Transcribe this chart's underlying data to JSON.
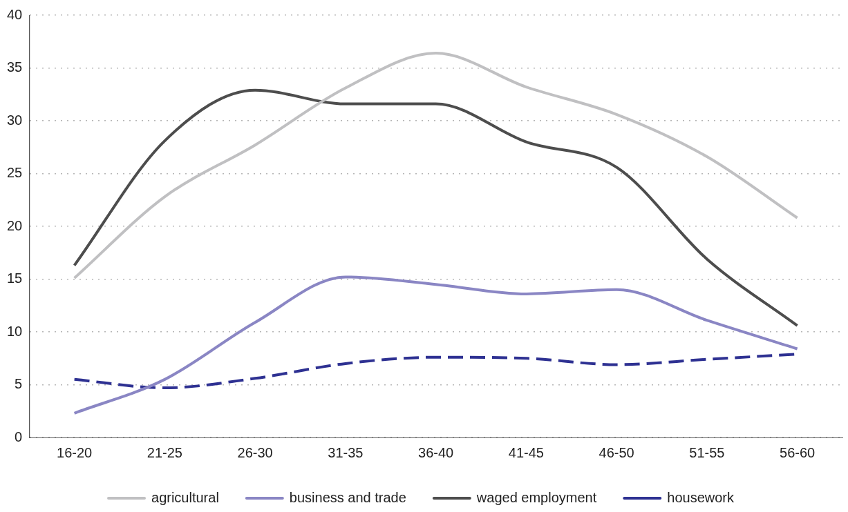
{
  "chart_data": {
    "type": "line",
    "categories": [
      "16-20",
      "21-25",
      "26-30",
      "31-35",
      "36-40",
      "41-45",
      "46-50",
      "51-55",
      "56-60"
    ],
    "series": [
      {
        "name": "agricultural",
        "color": "#c0c0c2",
        "values": [
          15.1,
          22.8,
          27.7,
          33.1,
          36.4,
          33.2,
          30.6,
          26.6,
          20.8
        ]
      },
      {
        "name": "business and trade",
        "color": "#8a86c4",
        "values": [
          2.3,
          5.5,
          10.9,
          15.2,
          14.5,
          13.6,
          14.0,
          11.1,
          8.4
        ]
      },
      {
        "name": "waged employment",
        "color": "#4d4d4d",
        "values": [
          16.3,
          28.1,
          32.9,
          31.6,
          31.6,
          28.0,
          25.6,
          16.9,
          10.6
        ]
      },
      {
        "name": "housework",
        "color": "#2e3192",
        "line_style": "dashed",
        "values": [
          5.5,
          4.7,
          5.6,
          7.0,
          7.6,
          7.5,
          6.9,
          7.4,
          7.9
        ]
      }
    ],
    "ylim": [
      0,
      40
    ],
    "yticks": [
      0,
      5,
      10,
      15,
      20,
      25,
      30,
      35,
      40
    ],
    "grid": "y",
    "legend": "bottom",
    "marker": "none"
  }
}
